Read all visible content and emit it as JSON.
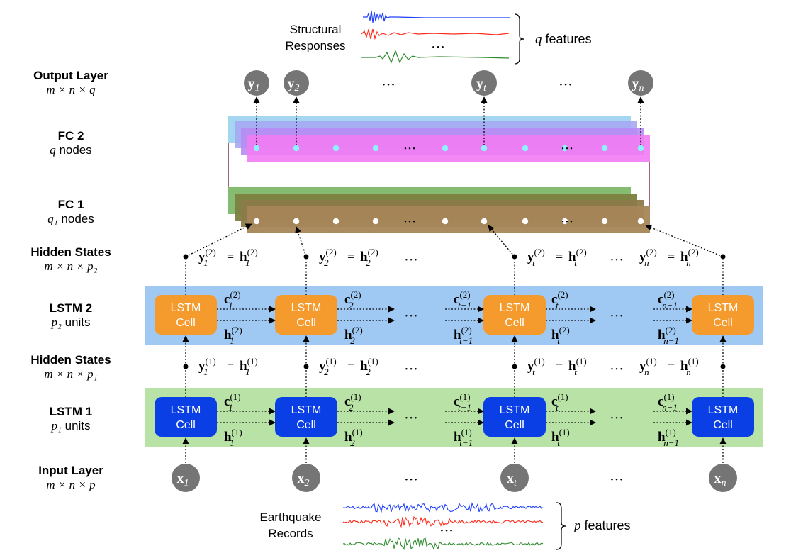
{
  "layers": {
    "output": {
      "title": "Output Layer",
      "dims": "m × n × q"
    },
    "fc2": {
      "title": "FC 2",
      "var": "q",
      "suffix": " nodes"
    },
    "fc1": {
      "title": "FC 1",
      "var": "q₁",
      "suffix": " nodes"
    },
    "hidden2": {
      "title": "Hidden States",
      "dims": "m × n × p₂"
    },
    "lstm2": {
      "title": "LSTM 2",
      "var": "p₂",
      "suffix": " units"
    },
    "hidden1": {
      "title": "Hidden States",
      "dims": "m × n × p₁"
    },
    "lstm1": {
      "title": "LSTM 1",
      "var": "p₁",
      "suffix": " units"
    },
    "input": {
      "title": "Input Layer",
      "dims": "m × n × p"
    }
  },
  "cell_label": [
    "LSTM",
    "Cell"
  ],
  "structural_responses": {
    "label": [
      "Structural",
      "Responses"
    ],
    "features_var": "q",
    "features_suffix": " features"
  },
  "earthquake_records": {
    "label": [
      "Earthquake",
      "Records"
    ],
    "features_var": "p",
    "features_suffix": " features"
  },
  "ellipsis": "• • •",
  "outputs": [
    "1",
    "2",
    "t",
    "n"
  ],
  "inputs": [
    "1",
    "2",
    "t",
    "n"
  ],
  "colors": {
    "node_gray": "#757575",
    "lstm1_bg": "#b9e3a6",
    "lstm2_bg": "#9fc9f2",
    "lstm1_cell": "#0a3fe6",
    "lstm2_cell": "#f59a2c",
    "fc2_blue": "#9bd2f0",
    "fc2_purple": "#b78cf4",
    "fc2_magenta": "#f17cf3",
    "fc1_green": "#7fb86a",
    "fc1_olive": "#7b8040",
    "fc1_brown": "#a78659",
    "wave_blue": "#1f3fff",
    "wave_red": "#ff2a1a",
    "wave_green": "#2e8b2e"
  }
}
